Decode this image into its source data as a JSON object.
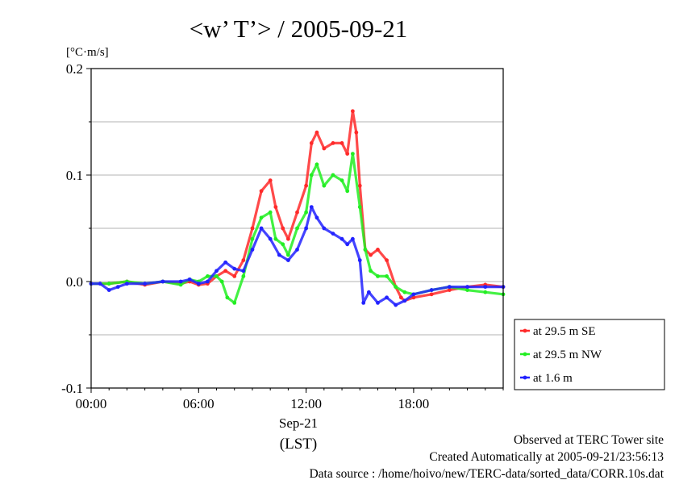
{
  "chart_data": {
    "type": "line",
    "title": "<w’ T’> / 2005-09-21",
    "ylabel": "[°C·m/s]",
    "xlabel": "(LST)",
    "date_label": "Sep-21",
    "xlim": [
      0,
      23
    ],
    "ylim": [
      -0.1,
      0.2
    ],
    "x_unit": "hours LST",
    "x_ticks": [
      {
        "value": 0,
        "label": "00:00"
      },
      {
        "value": 6,
        "label": "06:00"
      },
      {
        "value": 12,
        "label": "12:00"
      },
      {
        "value": 18,
        "label": "18:00"
      }
    ],
    "y_ticks": [
      {
        "value": -0.1,
        "label": "-0.1"
      },
      {
        "value": 0.0,
        "label": "0.0"
      },
      {
        "value": 0.1,
        "label": "0.1"
      },
      {
        "value": 0.2,
        "label": "0.2"
      }
    ],
    "grid": "horizontal dashed at 0.05 intervals",
    "legend_position": "right, outside plot, lower",
    "series": [
      {
        "name": "at 29.5 m SE",
        "color": "#ff2a2a",
        "x": [
          0,
          1,
          2,
          3,
          4,
          5,
          5.5,
          6,
          6.5,
          7,
          7.5,
          8,
          8.5,
          9,
          9.5,
          10,
          10.3,
          10.7,
          11,
          11.5,
          12,
          12.3,
          12.6,
          13,
          13.5,
          14,
          14.3,
          14.6,
          14.8,
          15,
          15.3,
          15.6,
          16,
          16.5,
          17,
          17.3,
          17.5,
          18,
          19,
          20,
          21,
          22,
          23
        ],
        "y": [
          -0.002,
          -0.002,
          0,
          -0.003,
          0,
          -0.002,
          0,
          -0.003,
          -0.002,
          0.005,
          0.01,
          0.005,
          0.02,
          0.05,
          0.085,
          0.095,
          0.07,
          0.05,
          0.04,
          0.065,
          0.09,
          0.13,
          0.14,
          0.125,
          0.13,
          0.13,
          0.12,
          0.16,
          0.14,
          0.09,
          0.03,
          0.025,
          0.03,
          0.02,
          -0.005,
          -0.015,
          -0.018,
          -0.015,
          -0.012,
          -0.008,
          -0.005,
          -0.003,
          -0.005
        ]
      },
      {
        "name": "at 29.5 m NW",
        "color": "#22ee22",
        "x": [
          0,
          1,
          2,
          3,
          4,
          5,
          5.5,
          6,
          6.5,
          7,
          7.3,
          7.6,
          8,
          8.5,
          9,
          9.5,
          10,
          10.3,
          10.7,
          11,
          11.5,
          12,
          12.3,
          12.6,
          13,
          13.5,
          14,
          14.3,
          14.6,
          15,
          15.3,
          15.6,
          16,
          16.5,
          17,
          17.5,
          18,
          19,
          20,
          21,
          22,
          23
        ],
        "y": [
          -0.002,
          -0.002,
          0,
          -0.002,
          0,
          -0.003,
          0.002,
          0,
          0.005,
          0.005,
          0.0,
          -0.015,
          -0.02,
          0.005,
          0.04,
          0.06,
          0.065,
          0.04,
          0.035,
          0.025,
          0.05,
          0.065,
          0.1,
          0.11,
          0.09,
          0.1,
          0.095,
          0.085,
          0.12,
          0.07,
          0.03,
          0.01,
          0.005,
          0.005,
          -0.005,
          -0.01,
          -0.012,
          -0.008,
          -0.005,
          -0.008,
          -0.01,
          -0.012
        ]
      },
      {
        "name": "at 1.6 m",
        "color": "#2222ff",
        "x": [
          0,
          0.5,
          1,
          1.5,
          2,
          3,
          4,
          5,
          5.5,
          6,
          6.5,
          7,
          7.5,
          8,
          8.5,
          9,
          9.5,
          10,
          10.5,
          11,
          11.5,
          12,
          12.3,
          12.6,
          13,
          13.5,
          14,
          14.3,
          14.6,
          15,
          15.2,
          15.5,
          16,
          16.5,
          17,
          17.5,
          18,
          19,
          20,
          21,
          22,
          23
        ],
        "y": [
          -0.002,
          -0.002,
          -0.008,
          -0.005,
          -0.002,
          -0.002,
          0,
          0,
          0.002,
          -0.002,
          0.0,
          0.01,
          0.018,
          0.012,
          0.01,
          0.03,
          0.05,
          0.04,
          0.025,
          0.02,
          0.03,
          0.05,
          0.07,
          0.06,
          0.05,
          0.045,
          0.04,
          0.035,
          0.04,
          0.02,
          -0.02,
          -0.01,
          -0.02,
          -0.015,
          -0.022,
          -0.018,
          -0.012,
          -0.008,
          -0.005,
          -0.005,
          -0.005,
          -0.005
        ]
      }
    ]
  },
  "footer": {
    "line1": "Observed at TERC Tower site",
    "line2": "Created Automatically at 2005-09-21/23:56:13",
    "line3": "Data source : /home/hoivo/new/TERC-data/sorted_data/CORR.10s.dat"
  }
}
